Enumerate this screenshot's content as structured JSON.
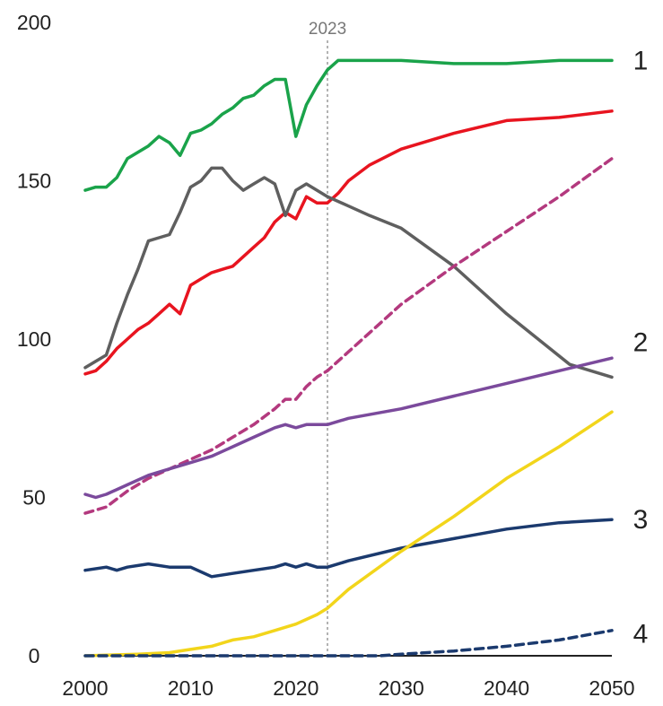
{
  "chart_data": {
    "type": "line",
    "title": "",
    "xlabel": "",
    "ylabel": "",
    "xlim": [
      2000,
      2050
    ],
    "ylim": [
      0,
      200
    ],
    "x_ticks": [
      2000,
      2010,
      2020,
      2030,
      2040,
      2050
    ],
    "y_ticks": [
      0,
      50,
      100,
      150,
      200
    ],
    "grid": false,
    "legend": "none",
    "reference_line": {
      "x": 2023,
      "label": "2023",
      "color": "#9a9a9a"
    },
    "series_labels": [
      {
        "text": "1",
        "y": 188
      },
      {
        "text": "2",
        "y": 99
      },
      {
        "text": "3",
        "y": 43
      },
      {
        "text": "4",
        "y": 7
      }
    ],
    "series": [
      {
        "color": "#1aa34a",
        "dashed": false,
        "x": [
          2000,
          2001,
          2002,
          2003,
          2004,
          2005,
          2006,
          2007,
          2008,
          2009,
          2010,
          2011,
          2012,
          2013,
          2014,
          2015,
          2016,
          2017,
          2018,
          2019,
          2020,
          2021,
          2022,
          2023,
          2024,
          2025,
          2030,
          2035,
          2040,
          2045,
          2050
        ],
        "y": [
          147,
          148,
          148,
          151,
          157,
          159,
          161,
          164,
          162,
          158,
          165,
          166,
          168,
          171,
          173,
          176,
          177,
          180,
          182,
          182,
          164,
          174,
          180,
          185,
          188,
          188,
          188,
          187,
          187,
          188,
          188
        ]
      },
      {
        "color": "#e8141f",
        "dashed": false,
        "x": [
          2000,
          2001,
          2002,
          2003,
          2004,
          2005,
          2006,
          2007,
          2008,
          2009,
          2010,
          2011,
          2012,
          2013,
          2014,
          2015,
          2016,
          2017,
          2018,
          2019,
          2020,
          2021,
          2022,
          2023,
          2024,
          2025,
          2027,
          2030,
          2035,
          2040,
          2045,
          2050
        ],
        "y": [
          89,
          90,
          93,
          97,
          100,
          103,
          105,
          108,
          111,
          108,
          117,
          119,
          121,
          122,
          123,
          126,
          129,
          132,
          137,
          140,
          138,
          145,
          143,
          143,
          146,
          150,
          155,
          160,
          165,
          169,
          170,
          172
        ]
      },
      {
        "color": "#5f5f5f",
        "dashed": false,
        "x": [
          2000,
          2001,
          2002,
          2003,
          2004,
          2005,
          2006,
          2007,
          2008,
          2009,
          2010,
          2011,
          2012,
          2013,
          2014,
          2015,
          2016,
          2017,
          2018,
          2019,
          2020,
          2021,
          2022,
          2023,
          2025,
          2027,
          2030,
          2035,
          2040,
          2046,
          2050
        ],
        "y": [
          91,
          93,
          95,
          105,
          114,
          122,
          131,
          132,
          133,
          140,
          148,
          150,
          154,
          154,
          150,
          147,
          149,
          151,
          149,
          139,
          147,
          149,
          147,
          145,
          142,
          139,
          135,
          123,
          108,
          92,
          88
        ]
      },
      {
        "color": "#b3397e",
        "dashed": true,
        "x": [
          2000,
          2002,
          2004,
          2006,
          2008,
          2010,
          2012,
          2014,
          2016,
          2018,
          2019,
          2020,
          2021,
          2022,
          2023,
          2025,
          2030,
          2035,
          2040,
          2045,
          2050
        ],
        "y": [
          45,
          47,
          52,
          56,
          59,
          62,
          65,
          69,
          73,
          78,
          81,
          81,
          85,
          88,
          90,
          96,
          111,
          123,
          134,
          145,
          157
        ]
      },
      {
        "color": "#7b4a9c",
        "dashed": false,
        "x": [
          2000,
          2001,
          2002,
          2004,
          2006,
          2008,
          2010,
          2012,
          2014,
          2016,
          2018,
          2019,
          2020,
          2021,
          2022,
          2023,
          2025,
          2030,
          2035,
          2040,
          2045,
          2050
        ],
        "y": [
          51,
          50,
          51,
          54,
          57,
          59,
          61,
          63,
          66,
          69,
          72,
          73,
          72,
          73,
          73,
          73,
          75,
          78,
          82,
          86,
          90,
          94
        ]
      },
      {
        "color": "#1b3a6e",
        "dashed": false,
        "x": [
          2000,
          2002,
          2003,
          2004,
          2006,
          2008,
          2009,
          2010,
          2012,
          2014,
          2016,
          2018,
          2019,
          2020,
          2021,
          2022,
          2023,
          2025,
          2030,
          2035,
          2040,
          2045,
          2050
        ],
        "y": [
          27,
          28,
          27,
          28,
          29,
          28,
          28,
          28,
          25,
          26,
          27,
          28,
          29,
          28,
          29,
          28,
          28,
          30,
          34,
          37,
          40,
          42,
          43
        ]
      },
      {
        "color": "#f2d51b",
        "dashed": false,
        "x": [
          2000,
          2005,
          2008,
          2010,
          2012,
          2014,
          2016,
          2018,
          2020,
          2022,
          2023,
          2025,
          2030,
          2035,
          2040,
          2045,
          2050
        ],
        "y": [
          0,
          0.5,
          1,
          2,
          3,
          5,
          6,
          8,
          10,
          13,
          15,
          21,
          33,
          44,
          56,
          66,
          77
        ]
      },
      {
        "color": "#1b3a6e",
        "dashed": true,
        "x": [
          2000,
          2020,
          2025,
          2028,
          2030,
          2035,
          2040,
          2045,
          2050
        ],
        "y": [
          0,
          0,
          0,
          0,
          0.5,
          1.5,
          3,
          5,
          8
        ]
      }
    ]
  }
}
